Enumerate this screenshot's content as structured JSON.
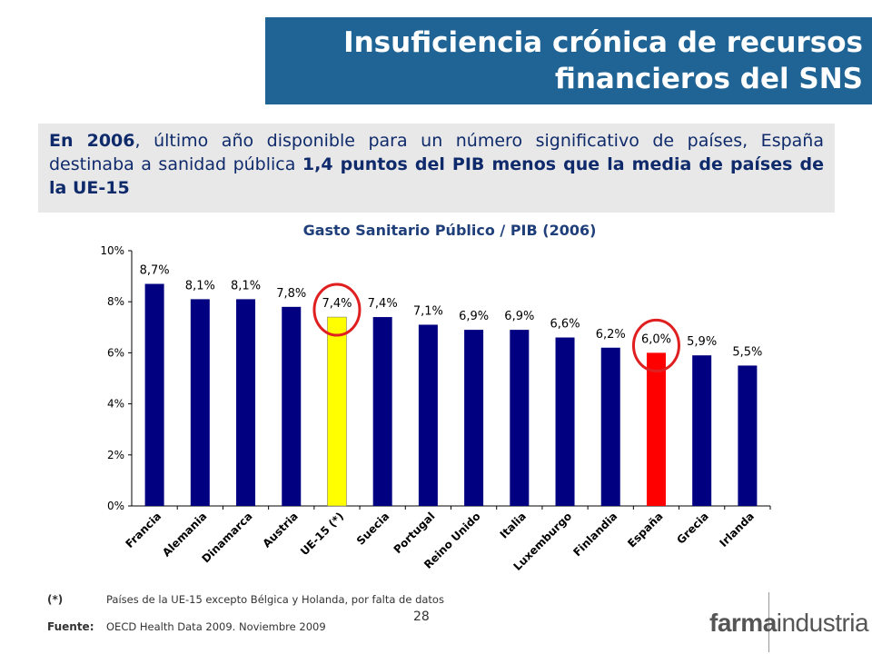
{
  "header": {
    "title_line1": "Insuficiencia crónica de recursos",
    "title_line2": "financieros del SNS"
  },
  "summary": {
    "part1": "En 2006",
    "part2": ", último año disponible para un número significativo de países, España destinaba a sanidad pública ",
    "part3": "1,4 puntos del PIB menos que la media de países de la UE-15"
  },
  "chart_data": {
    "type": "bar",
    "title": "Gasto Sanitario Público / PIB (2006)",
    "xlabel": "",
    "ylabel": "",
    "ylim": [
      0,
      10
    ],
    "yticks": [
      "0%",
      "2%",
      "4%",
      "6%",
      "8%",
      "10%"
    ],
    "grid": false,
    "categories": [
      "Francia",
      "Alemania",
      "Dinamarca",
      "Austria",
      "UE-15 (*)",
      "Suecia",
      "Portugal",
      "Reino Unido",
      "Italia",
      "Luxemburgo",
      "Finlandia",
      "España",
      "Grecia",
      "Irlanda"
    ],
    "values": [
      8.7,
      8.1,
      8.1,
      7.8,
      7.4,
      7.4,
      7.1,
      6.9,
      6.9,
      6.6,
      6.2,
      6.0,
      5.9,
      5.5
    ],
    "data_labels": [
      "8,7%",
      "8,1%",
      "8,1%",
      "7,8%",
      "7,4%",
      "7,4%",
      "7,1%",
      "6,9%",
      "6,9%",
      "6,6%",
      "6,2%",
      "6,0%",
      "5,9%",
      "5,5%"
    ],
    "colors": {
      "default": "#000080",
      "highlight_ue15": "#ffff00",
      "highlight_espana": "#ff0000",
      "circle": "#e02020"
    },
    "highlighted": [
      "UE-15 (*)",
      "España"
    ]
  },
  "footer": {
    "footnote_tag": "(*)",
    "footnote_text": "Países de la UE-15 excepto Bélgica y Holanda, por falta de datos",
    "source_tag": "Fuente:",
    "source_text": "OECD Health Data 2009. Noviembre 2009",
    "page_number": "28",
    "logo_bold": "farma",
    "logo_light": "industria"
  }
}
